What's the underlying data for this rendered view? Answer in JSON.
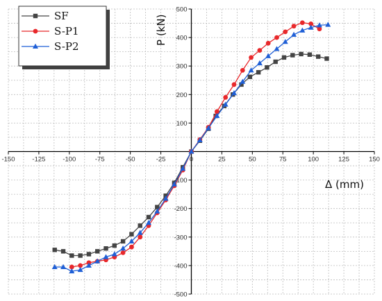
{
  "chart_data": {
    "type": "line",
    "xlabel": "Δ (mm)",
    "ylabel": "P (kN)",
    "xlim": [
      -150,
      150
    ],
    "ylim": [
      -500,
      500
    ],
    "xticks": [
      -150,
      -125,
      -100,
      -75,
      -50,
      -25,
      0,
      25,
      50,
      75,
      100,
      125,
      150
    ],
    "yticks": [
      -500,
      -400,
      -300,
      -200,
      -100,
      100,
      200,
      300,
      400,
      500
    ],
    "grid": true,
    "legend_position": "top-left",
    "series": [
      {
        "name": "SF",
        "color": "#444444",
        "marker": "square",
        "points": [
          [
            -112,
            -345
          ],
          [
            -105,
            -350
          ],
          [
            -98,
            -365
          ],
          [
            -91,
            -365
          ],
          [
            -84,
            -360
          ],
          [
            -77,
            -350
          ],
          [
            -70,
            -340
          ],
          [
            -63,
            -330
          ],
          [
            -56,
            -315
          ],
          [
            -49,
            -290
          ],
          [
            -42,
            -260
          ],
          [
            -35,
            -230
          ],
          [
            -28,
            -195
          ],
          [
            -21,
            -155
          ],
          [
            -14,
            -110
          ],
          [
            -7,
            -55
          ],
          [
            0,
            0
          ],
          [
            7,
            38
          ],
          [
            14,
            80
          ],
          [
            20,
            125
          ],
          [
            27,
            160
          ],
          [
            34,
            200
          ],
          [
            41,
            235
          ],
          [
            48,
            262
          ],
          [
            55,
            278
          ],
          [
            62,
            295
          ],
          [
            69,
            315
          ],
          [
            76,
            330
          ],
          [
            83,
            338
          ],
          [
            90,
            342
          ],
          [
            97,
            340
          ],
          [
            104,
            333
          ],
          [
            111,
            326
          ]
        ]
      },
      {
        "name": "S-P1",
        "color": "#e8282b",
        "marker": "circle",
        "points": [
          [
            -98,
            -405
          ],
          [
            -91,
            -400
          ],
          [
            -84,
            -390
          ],
          [
            -77,
            -385
          ],
          [
            -70,
            -380
          ],
          [
            -63,
            -370
          ],
          [
            -56,
            -355
          ],
          [
            -49,
            -335
          ],
          [
            -42,
            -300
          ],
          [
            -35,
            -260
          ],
          [
            -28,
            -215
          ],
          [
            -21,
            -170
          ],
          [
            -14,
            -120
          ],
          [
            -7,
            -65
          ],
          [
            0,
            0
          ],
          [
            7,
            42
          ],
          [
            14,
            85
          ],
          [
            21,
            140
          ],
          [
            28,
            190
          ],
          [
            35,
            235
          ],
          [
            42,
            285
          ],
          [
            49,
            330
          ],
          [
            56,
            355
          ],
          [
            63,
            380
          ],
          [
            70,
            400
          ],
          [
            77,
            420
          ],
          [
            84,
            440
          ],
          [
            91,
            452
          ],
          [
            98,
            448
          ],
          [
            105,
            430
          ]
        ]
      },
      {
        "name": "S-P2",
        "color": "#1f5fd6",
        "marker": "triangle",
        "points": [
          [
            -112,
            -405
          ],
          [
            -105,
            -405
          ],
          [
            -98,
            -420
          ],
          [
            -91,
            -415
          ],
          [
            -84,
            -400
          ],
          [
            -77,
            -385
          ],
          [
            -70,
            -370
          ],
          [
            -63,
            -360
          ],
          [
            -56,
            -340
          ],
          [
            -49,
            -315
          ],
          [
            -42,
            -285
          ],
          [
            -35,
            -250
          ],
          [
            -28,
            -210
          ],
          [
            -21,
            -165
          ],
          [
            -14,
            -115
          ],
          [
            -7,
            -60
          ],
          [
            0,
            0
          ],
          [
            7,
            40
          ],
          [
            14,
            82
          ],
          [
            21,
            125
          ],
          [
            28,
            165
          ],
          [
            35,
            205
          ],
          [
            42,
            245
          ],
          [
            49,
            285
          ],
          [
            56,
            310
          ],
          [
            63,
            335
          ],
          [
            70,
            360
          ],
          [
            77,
            385
          ],
          [
            84,
            410
          ],
          [
            91,
            425
          ],
          [
            98,
            435
          ],
          [
            105,
            443
          ],
          [
            112,
            445
          ]
        ]
      }
    ]
  }
}
